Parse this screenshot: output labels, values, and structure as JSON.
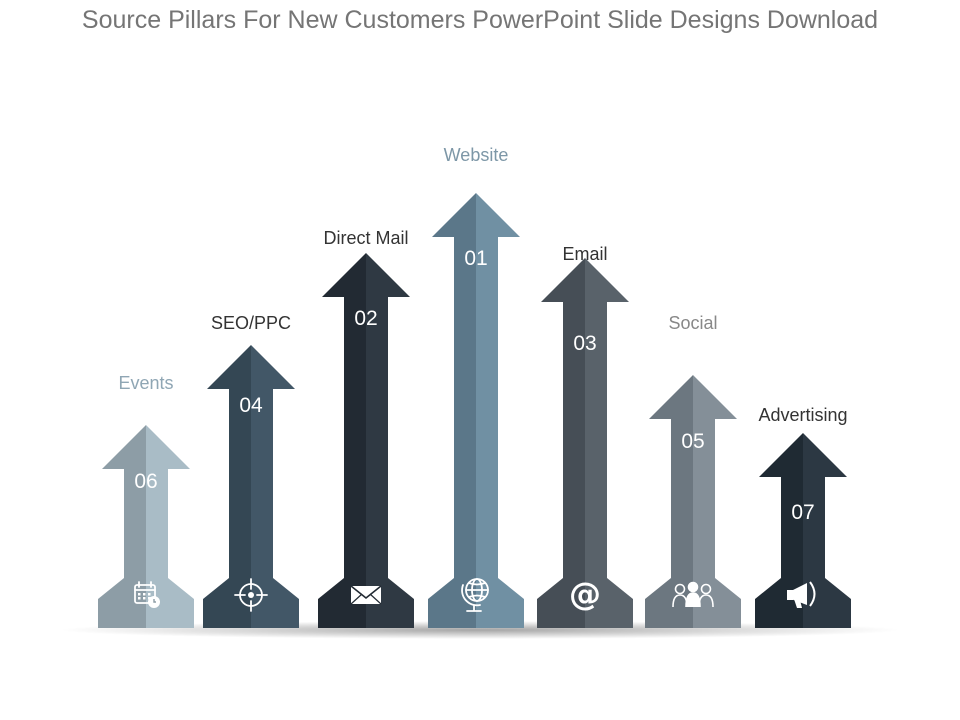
{
  "title": "Source Pillars For New Customers PowerPoint Slide Designs Download",
  "pillars": [
    {
      "number": "06",
      "label": "Events",
      "label_color": "#8fa6b4",
      "color_left": "#8d9da6",
      "color_right": "#a9bcc6",
      "icon": "calendar-clock-icon"
    },
    {
      "number": "04",
      "label": "SEO/PPC",
      "label_color": "#333333",
      "color_left": "#344754",
      "color_right": "#425767",
      "icon": "crosshair-target-icon"
    },
    {
      "number": "02",
      "label": "Direct Mail",
      "label_color": "#333333",
      "color_left": "#222a33",
      "color_right": "#2f3943",
      "icon": "envelope-icon"
    },
    {
      "number": "01",
      "label": "Website",
      "label_color": "#7d97a7",
      "color_left": "#5b7789",
      "color_right": "#7090a3",
      "icon": "globe-icon"
    },
    {
      "number": "03",
      "label": "Email",
      "label_color": "#333333",
      "color_left": "#464e56",
      "color_right": "#59626a",
      "icon": "at-sign-icon"
    },
    {
      "number": "05",
      "label": "Social",
      "label_color": "#888888",
      "color_left": "#6c7780",
      "color_right": "#848f98",
      "icon": "people-group-icon"
    },
    {
      "number": "07",
      "label": "Advertising",
      "label_color": "#333333",
      "color_left": "#1f2a33",
      "color_right": "#2c3843",
      "icon": "megaphone-icon"
    }
  ]
}
